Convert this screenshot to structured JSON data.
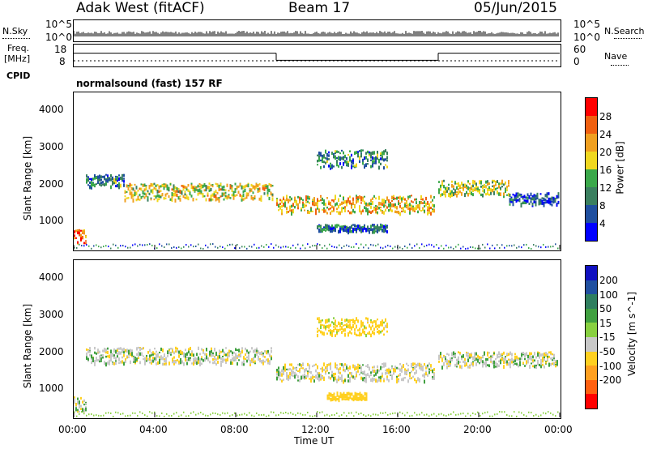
{
  "header": {
    "site": "Adak West (fitACF)",
    "beam": "Beam 17",
    "date": "05/Jun/2015"
  },
  "noise_panel": {
    "left_label": "N.Sky",
    "right_label": "N.Search",
    "left_ticks": [
      "10^5",
      "10^0"
    ],
    "right_ticks": [
      "10^5",
      "10^0"
    ]
  },
  "freq_panel": {
    "left_label_top": "Freq.",
    "left_label_unit": "[MHz]",
    "right_label": "Nave",
    "left_ticks": [
      "18",
      "8"
    ],
    "right_ticks": [
      "60",
      "0"
    ],
    "segments": [
      {
        "start_h": 0,
        "end_h": 10,
        "freq_mhz": 15
      },
      {
        "start_h": 10,
        "end_h": 18,
        "freq_mhz": 11
      },
      {
        "start_h": 18,
        "end_h": 24,
        "freq_mhz": 15
      }
    ]
  },
  "cpid": {
    "label": "CPID",
    "value": "normalsound (fast) 157 RF"
  },
  "power_panel": {
    "ylabel": "Slant Range [km]",
    "yticks": [
      "4000",
      "3000",
      "2000",
      "1000"
    ],
    "colorbar_label": "Power [dB]",
    "colorbar_ticks": [
      "28",
      "24",
      "20",
      "16",
      "12",
      "8",
      "4"
    ],
    "colors": [
      "#0000ff",
      "#1f4f9f",
      "#3a7f5f",
      "#3aa84a",
      "#f0d820",
      "#f0a020",
      "#f06010",
      "#ff0000"
    ]
  },
  "velocity_panel": {
    "ylabel": "Slant Range [km]",
    "yticks": [
      "4000",
      "3000",
      "2000",
      "1000"
    ],
    "colorbar_label": "Velocity [m s^-1]",
    "colorbar_ticks": [
      "200",
      "100",
      "50",
      "15",
      "-15",
      "-50",
      "-100",
      "-200"
    ],
    "colors": [
      "#1010c0",
      "#2050a0",
      "#2f7f5f",
      "#40a040",
      "#88d040",
      "#c8c8c8",
      "#ffd020",
      "#ffa020",
      "#ff6010",
      "#ff0000"
    ]
  },
  "x_axis": {
    "ticks": [
      "00:00",
      "04:00",
      "08:00",
      "12:00",
      "16:00",
      "20:00",
      "00:00"
    ],
    "label": "Time UT"
  },
  "chart_data": {
    "type": "heatmap",
    "title": "Adak West (fitACF) Beam 17 05/Jun/2015",
    "xlabel": "Time UT",
    "ylabel": "Slant Range [km]",
    "xlim": [
      0,
      24
    ],
    "ylim": [
      180,
      4500
    ],
    "panels": [
      {
        "name": "Power [dB]",
        "clim": [
          0,
          32
        ],
        "echo_bands": [
          {
            "t_start": 0.0,
            "t_end": 0.6,
            "range_km": 560,
            "width_km": 250,
            "power_db": 26
          },
          {
            "t_start": 0.6,
            "t_end": 2.5,
            "range_km": 2100,
            "width_km": 200,
            "power_db": 10
          },
          {
            "t_start": 2.5,
            "t_end": 9.8,
            "range_km": 1800,
            "width_km": 280,
            "power_db": 18
          },
          {
            "t_start": 10.0,
            "t_end": 17.8,
            "range_km": 1450,
            "width_km": 300,
            "power_db": 20
          },
          {
            "t_start": 12.0,
            "t_end": 15.5,
            "range_km": 2700,
            "width_km": 300,
            "power_db": 10
          },
          {
            "t_start": 12.0,
            "t_end": 15.5,
            "range_km": 800,
            "width_km": 120,
            "power_db": 8
          },
          {
            "t_start": 18.0,
            "t_end": 21.5,
            "range_km": 1900,
            "width_km": 250,
            "power_db": 16
          },
          {
            "t_start": 21.5,
            "t_end": 23.9,
            "range_km": 1600,
            "width_km": 200,
            "power_db": 6
          }
        ]
      },
      {
        "name": "Velocity [m s^-1]",
        "clim": [
          -250,
          250
        ],
        "echo_bands": [
          {
            "t_start": 0.0,
            "t_end": 0.6,
            "range_km": 560,
            "width_km": 250,
            "velocity": 0
          },
          {
            "t_start": 0.6,
            "t_end": 9.8,
            "range_km": 1900,
            "width_km": 280,
            "velocity": 0
          },
          {
            "t_start": 10.0,
            "t_end": 17.8,
            "range_km": 1450,
            "width_km": 300,
            "velocity": -5
          },
          {
            "t_start": 12.0,
            "t_end": 15.5,
            "range_km": 2700,
            "width_km": 300,
            "velocity": -40
          },
          {
            "t_start": 12.5,
            "t_end": 14.5,
            "range_km": 800,
            "width_km": 120,
            "velocity": -60
          },
          {
            "t_start": 18.0,
            "t_end": 23.9,
            "range_km": 1800,
            "width_km": 250,
            "velocity": 0
          }
        ]
      }
    ]
  }
}
